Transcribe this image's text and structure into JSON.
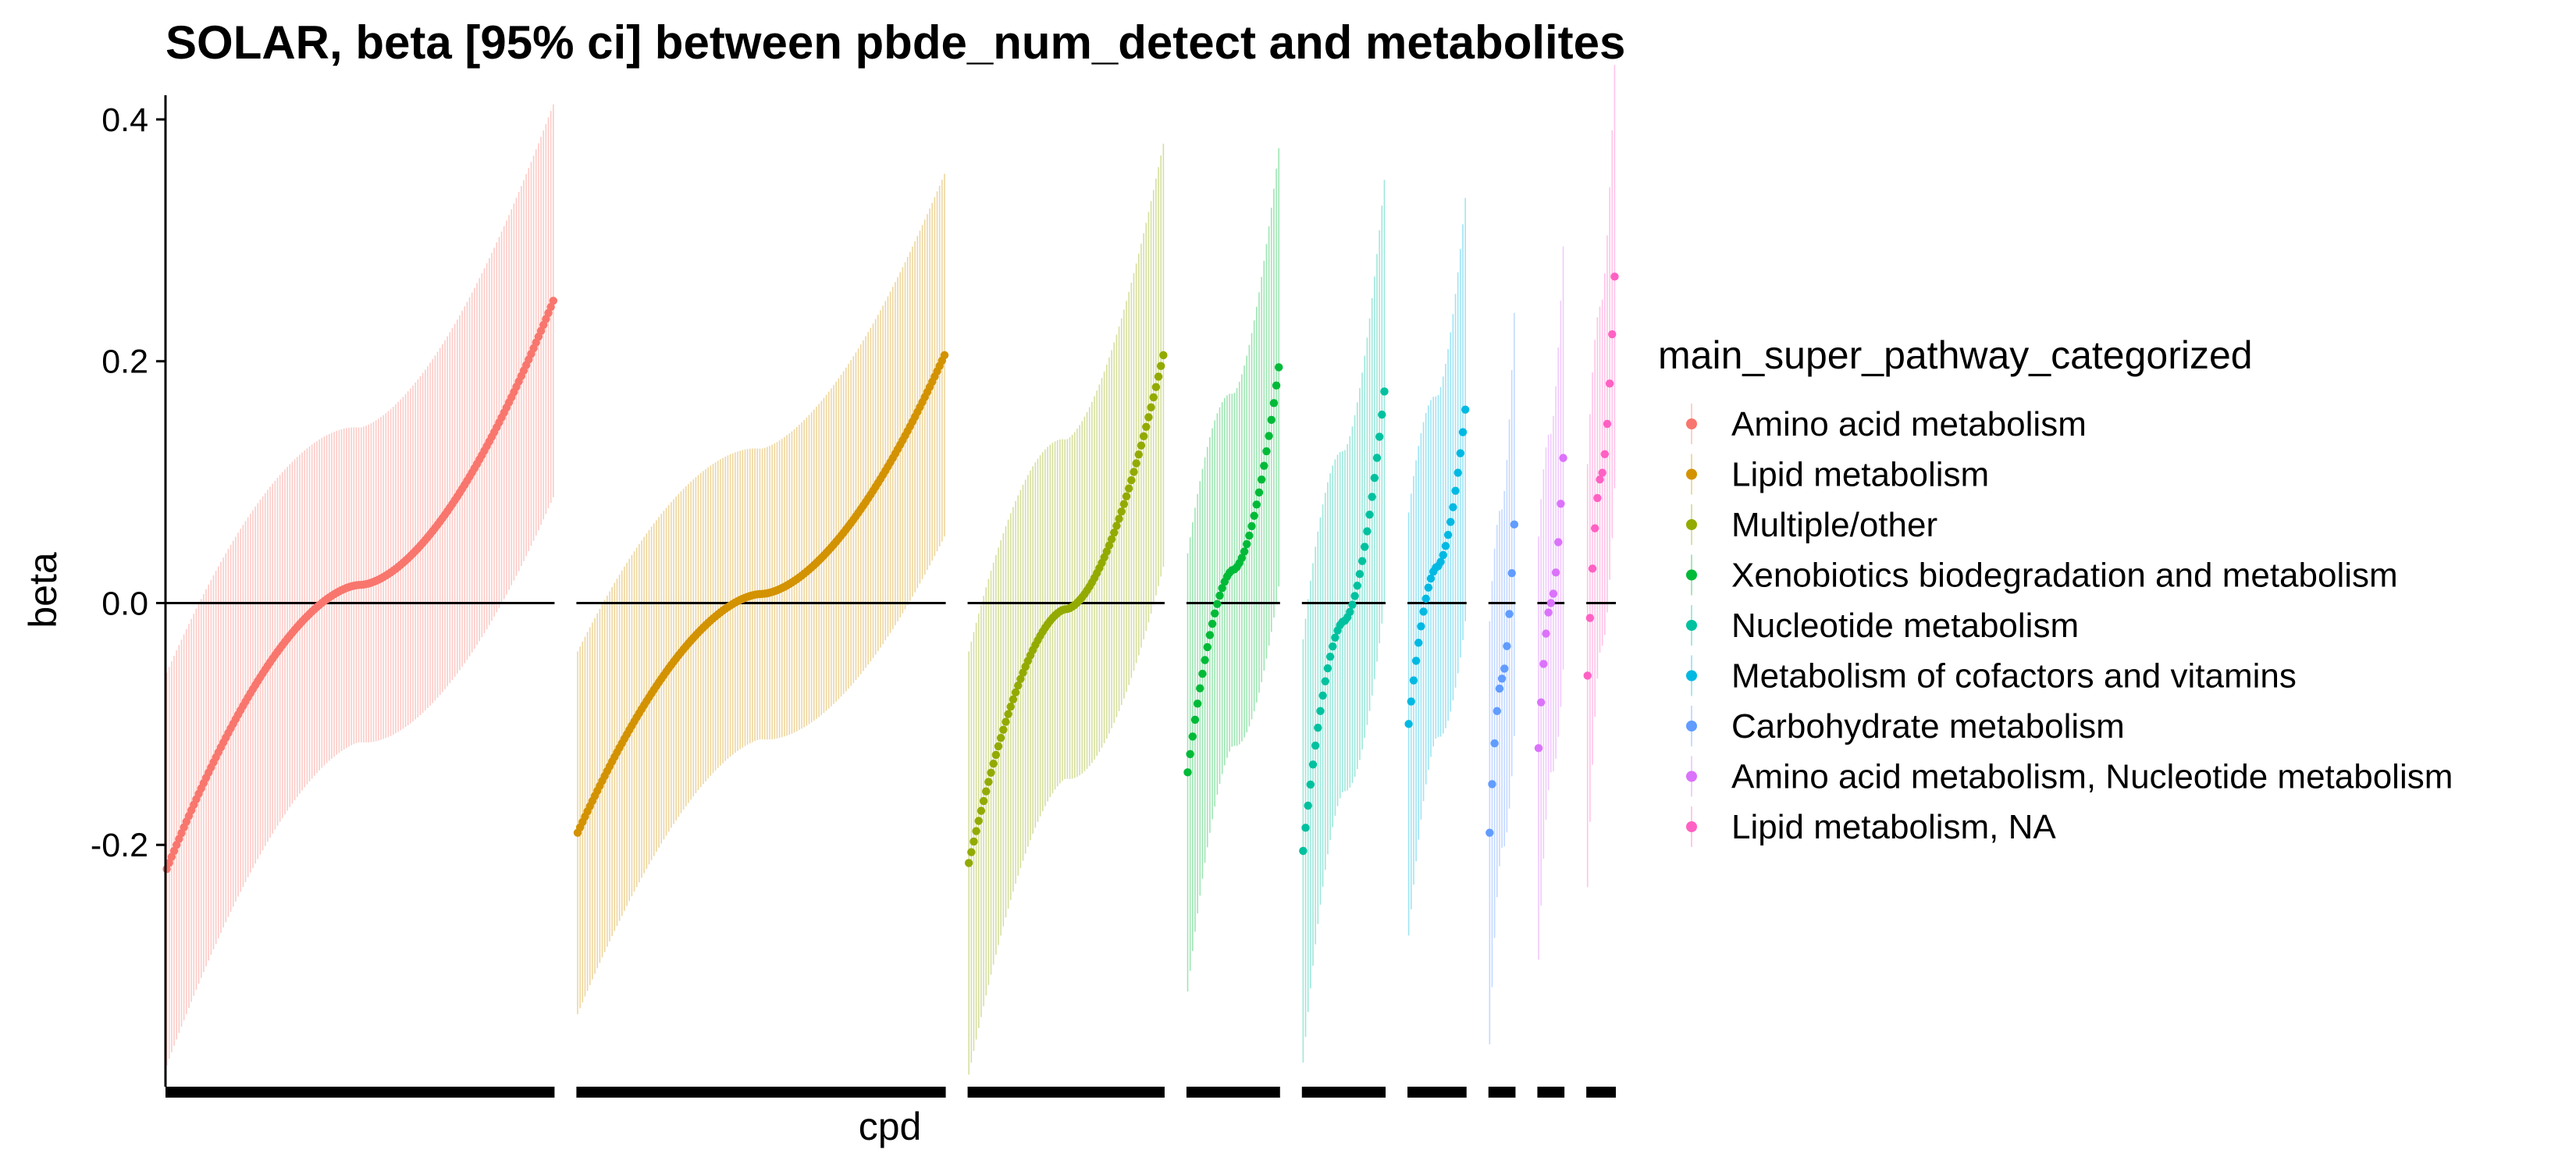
{
  "chart_data": {
    "type": "scatter",
    "title": "SOLAR, beta [95% ci] between pbde_num_detect and metabolites",
    "xlabel": "cpd",
    "ylabel": "beta",
    "ylim": [
      -0.4,
      0.42
    ],
    "yticks": [
      -0.2,
      0.0,
      0.2,
      0.4
    ],
    "ytick_labels": [
      "-0.2",
      "0.0",
      "0.2",
      "0.4"
    ],
    "reference_line": 0.0,
    "grid": false,
    "legend": {
      "title": "main_super_pathway_categorized",
      "position": "right"
    },
    "series": [
      {
        "name": "Amino acid metabolism",
        "color": "#F8766D",
        "n": 158,
        "beta_range": [
          -0.22,
          0.25
        ],
        "ci_half_width": 0.13
      },
      {
        "name": "Lipid metabolism",
        "color": "#D39200",
        "n": 150,
        "beta_range": [
          -0.19,
          0.205
        ],
        "ci_half_width": 0.12
      },
      {
        "name": "Multiple/other",
        "color": "#93AA00",
        "n": 80,
        "beta_range": [
          -0.215,
          0.205
        ],
        "ci_half_width": 0.14
      },
      {
        "name": "Xenobiotics biodegradation and metabolism",
        "color": "#00BA38",
        "n": 38,
        "beta_range": [
          -0.14,
          0.195
        ],
        "ci_half_width": 0.145
      },
      {
        "name": "Nucleotide metabolism",
        "color": "#00C19F",
        "n": 34,
        "beta_range": [
          -0.205,
          0.175
        ],
        "ci_half_width": 0.14
      },
      {
        "name": "Metabolism of cofactors and vitamins",
        "color": "#00B9E3",
        "n": 24,
        "beta_range": [
          -0.1,
          0.16
        ],
        "ci_half_width": 0.14
      },
      {
        "name": "Carbohydrate metabolism",
        "color": "#619CFF",
        "n": 11,
        "beta_range": [
          -0.19,
          0.065
        ],
        "ci_half_width": 0.14
      },
      {
        "name": "Amino acid metabolism, Nucleotide metabolism",
        "color": "#DB72FB",
        "n": 11,
        "beta_range": [
          -0.12,
          0.12
        ],
        "ci_half_width": 0.14
      },
      {
        "name": "Lipid metabolism, NA",
        "color": "#FF61C3",
        "n": 12,
        "beta_range": [
          -0.06,
          0.27
        ],
        "ci_half_width": 0.14
      }
    ]
  }
}
